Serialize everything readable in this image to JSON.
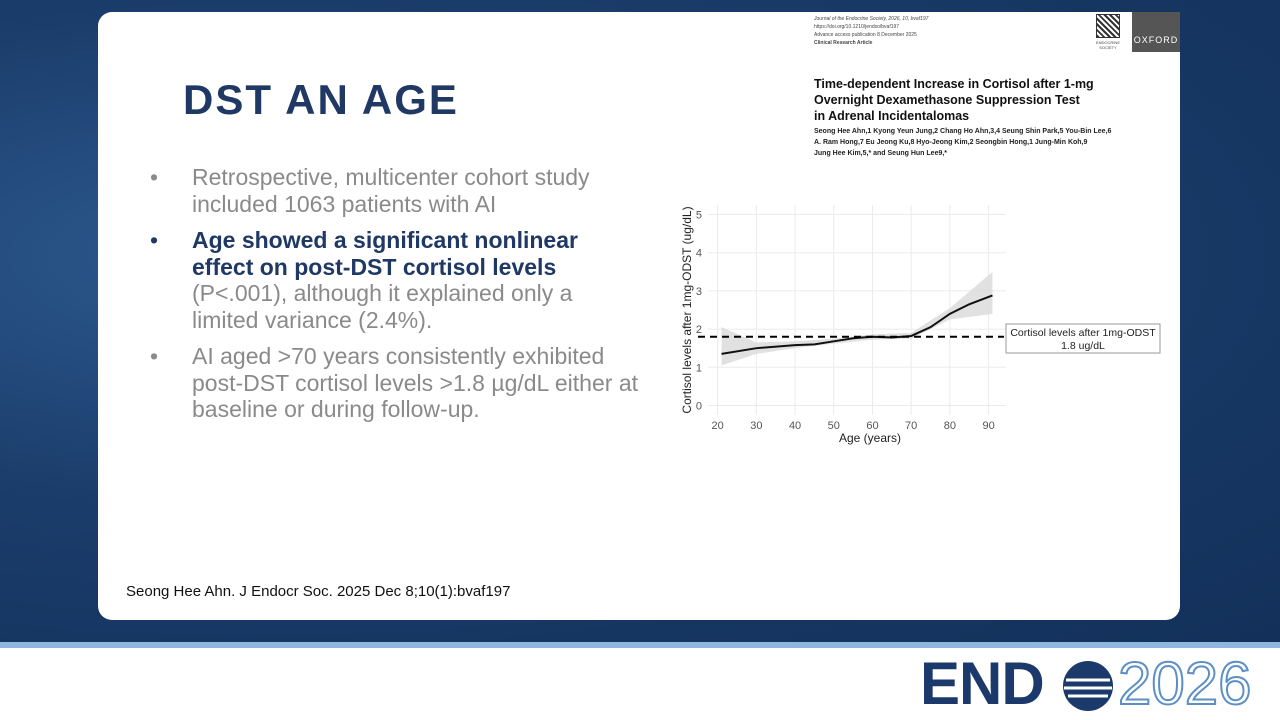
{
  "slide": {
    "title": "DST AN AGE",
    "bullets": [
      {
        "text": "Retrospective, multicenter cohort study included 1063 patients with AI"
      },
      {
        "bold": "Age showed a significant nonlinear effect on post-DST cortisol levels",
        "text": " (P<.001), although it explained only a limited variance (2.4%)."
      },
      {
        "text": "AI aged >70 years consistently exhibited post-DST cortisol levels >1.8 µg/dL either at baseline or during follow-up."
      }
    ],
    "citation": "Seong Hee Ahn. J Endocr Soc. 2025 Dec 8;10(1):bvaf197"
  },
  "paper": {
    "journal_lines": [
      "Journal of the Endocrine Society, 2026, 10, bvaf197",
      "https://doi.org/10.1210/jendso/bvaf197",
      "Advance access publication 8 December 2025",
      "Clinical Research Article"
    ],
    "society": "ENDOCRINE SOCIETY",
    "publisher": "OXFORD",
    "title_lines": [
      "Time-dependent Increase in Cortisol after 1-mg",
      "Overnight Dexamethasone Suppression Test",
      "in Adrenal Incidentalomas"
    ],
    "author_lines": [
      "Seong Hee Ahn,1 Kyong Yeun Jung,2 Chang Ho Ahn,3,4 Seung Shin Park,5 You-Bin Lee,6",
      "A. Ram Hong,7 Eu Jeong Ku,8 Hyo-Jeong Kim,2 Seongbin Hong,1 Jung-Min Koh,9",
      "Jung Hee Kim,5,* and Seung Hun Lee9,*"
    ]
  },
  "chart_data": {
    "type": "line",
    "x_label": "Age (years)",
    "y_label": "Cortisol levels after 1mg-ODST (ug/dL)",
    "x": [
      21,
      30,
      40,
      45,
      50,
      55,
      60,
      65,
      70,
      75,
      80,
      85,
      91
    ],
    "series": [
      {
        "color": "#111111",
        "values": [
          1.35,
          1.5,
          1.58,
          1.6,
          1.68,
          1.76,
          1.8,
          1.78,
          1.82,
          2.05,
          2.4,
          2.65,
          2.88
        ]
      }
    ],
    "band": {
      "color": "#d9d9d9",
      "x": [
        21,
        30,
        40,
        50,
        60,
        70,
        80,
        91
      ],
      "lower": [
        1.05,
        1.35,
        1.5,
        1.62,
        1.72,
        1.75,
        2.25,
        2.4
      ],
      "upper": [
        2.05,
        1.65,
        1.68,
        1.75,
        1.86,
        1.9,
        2.55,
        3.5
      ]
    },
    "reference": {
      "value": 1.8,
      "label_lines": [
        "Cortisol levels after 1mg-ODST",
        "1.8 ug/dL"
      ]
    },
    "xlim": [
      17.5,
      94.5
    ],
    "xticks": [
      20,
      30,
      40,
      50,
      60,
      70,
      80,
      90
    ],
    "ylim": [
      -0.25,
      5.25
    ],
    "yticks": [
      0,
      1,
      2,
      3,
      4,
      5
    ],
    "grid": true
  },
  "footer": {
    "brand": "END",
    "year": "2026"
  }
}
